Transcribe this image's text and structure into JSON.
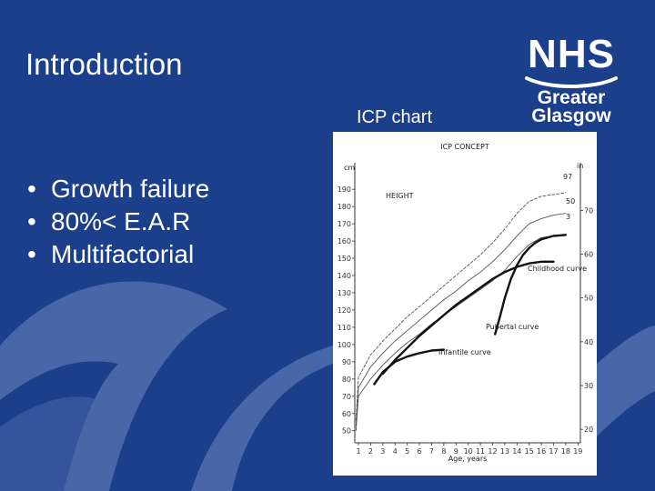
{
  "slide": {
    "title": "Introduction",
    "chart_caption": "ICP chart",
    "bullets": [
      "Growth failure",
      "80%< E.A.R",
      "Multifactorial"
    ]
  },
  "logo": {
    "mark": "NHS",
    "line1": "Greater",
    "line2": "Glasgow"
  },
  "colors": {
    "background": "#1c3f8c",
    "swoosh": "#4867a8",
    "text": "#ffffff",
    "chart_bg": "#ffffff",
    "ink": "#111111"
  },
  "chart_data": {
    "type": "line",
    "title": "ICP CONCEPT",
    "ylabel": "cm",
    "y2label": "in",
    "xlabel": "Age, years",
    "xlim": [
      0.7,
      19.2
    ],
    "ylim": [
      43,
      198
    ],
    "y_ticks": [
      50,
      60,
      70,
      80,
      90,
      100,
      110,
      120,
      130,
      140,
      150,
      160,
      170,
      180,
      190
    ],
    "y2_ticks": [
      20,
      30,
      40,
      50,
      60,
      70
    ],
    "x_ticks": [
      1,
      2,
      3,
      4,
      5,
      6,
      7,
      8,
      9,
      10,
      11,
      12,
      13,
      14,
      15,
      16,
      17,
      18,
      19
    ],
    "annotations": [
      "HEIGHT",
      "Infantile curve",
      "Childhood curve",
      "Pubertal curve",
      "97",
      "50",
      "3"
    ],
    "series": [
      {
        "role": "percentile",
        "label": "97",
        "style": "dashed",
        "x": [
          0.8,
          1,
          2,
          3,
          4,
          5,
          6,
          7,
          8,
          9,
          10,
          11,
          12,
          13,
          14,
          15,
          16,
          17,
          18
        ],
        "y": [
          56,
          81,
          94,
          102,
          109,
          116,
          122,
          128,
          134,
          140,
          146,
          152,
          159,
          167,
          176,
          183,
          186,
          187,
          188
        ]
      },
      {
        "role": "percentile",
        "label": "50",
        "style": "solid-thin",
        "x": [
          0.8,
          1,
          2,
          3,
          4,
          5,
          6,
          7,
          8,
          9,
          10,
          11,
          12,
          13,
          14,
          15,
          16,
          17,
          18
        ],
        "y": [
          53,
          75,
          87,
          95,
          102,
          108,
          114,
          120,
          126,
          131,
          137,
          142,
          148,
          155,
          163,
          170,
          173,
          175,
          176
        ]
      },
      {
        "role": "percentile",
        "label": "3",
        "style": "solid-thin",
        "x": [
          0.8,
          1,
          2,
          3,
          4,
          5,
          6,
          7,
          8,
          9,
          10,
          11,
          12,
          13,
          14,
          15,
          16,
          17,
          18
        ],
        "y": [
          50,
          70,
          80,
          88,
          95,
          101,
          106,
          112,
          117,
          122,
          127,
          132,
          137,
          143,
          151,
          158,
          162,
          163,
          164
        ]
      },
      {
        "role": "component",
        "label": "Infantile curve",
        "x": [
          2.3,
          3,
          4,
          5,
          6,
          7,
          8
        ],
        "y": [
          77,
          84,
          90,
          93,
          95,
          96.5,
          97
        ]
      },
      {
        "role": "component",
        "label": "Childhood curve",
        "x": [
          3,
          4,
          5,
          6,
          7,
          8,
          9,
          10,
          11,
          12,
          13,
          14,
          15,
          16,
          17
        ],
        "y": [
          83,
          91,
          98,
          105,
          111,
          117,
          123,
          128,
          133,
          138,
          142,
          145,
          147,
          148,
          148
        ]
      },
      {
        "role": "component",
        "label": "Pubertal curve",
        "x": [
          12.2,
          12.6,
          13,
          13.5,
          14,
          14.5,
          15,
          15.5,
          16,
          17,
          18
        ],
        "y": [
          106,
          116,
          127,
          138,
          146,
          152,
          156,
          159,
          161,
          163,
          163.5
        ]
      }
    ]
  }
}
